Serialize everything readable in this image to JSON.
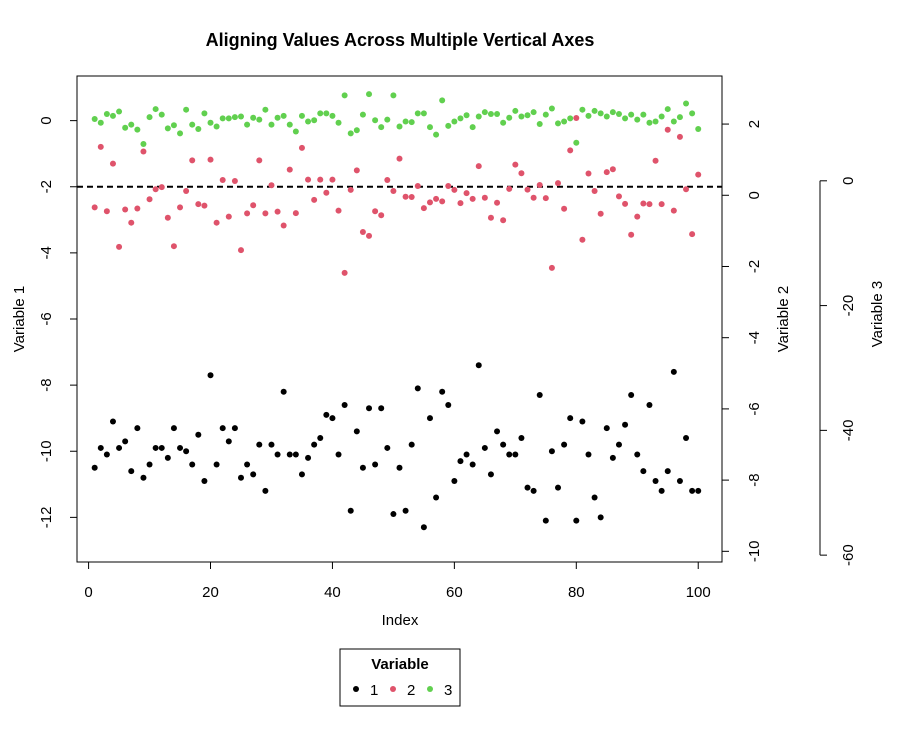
{
  "chart_data": {
    "type": "scatter",
    "title": "Aligning Values Across Multiple Vertical Axes",
    "xlabel": "Index",
    "xlim": [
      -1.9,
      103.9
    ],
    "x_ticks": [
      0,
      20,
      40,
      60,
      80,
      100
    ],
    "axes": [
      {
        "id": "y1",
        "label": "Variable 1",
        "side": "left",
        "range": [
          -13.35,
          1.35
        ],
        "ticks": [
          0,
          -2,
          -4,
          -6,
          -8,
          -10,
          -12
        ]
      },
      {
        "id": "y2",
        "label": "Variable 2",
        "side": "right",
        "range": [
          -10.3,
          3.35
        ],
        "ticks": [
          2,
          0,
          -2,
          -4,
          -6,
          -8,
          -10
        ]
      },
      {
        "id": "y3",
        "label": "Variable 3",
        "side": "right-outer",
        "range": [
          -61.1,
          16.8
        ],
        "ticks": [
          0,
          -20,
          -40,
          -60
        ]
      }
    ],
    "reference_line": {
      "axis": "y1",
      "value": -2,
      "style": "dashed"
    },
    "legend": {
      "title": "Variable",
      "position": "bottom"
    },
    "series": [
      {
        "name": "1",
        "axis": "y1",
        "color": "#000000",
        "x": [
          1,
          2,
          3,
          4,
          5,
          6,
          7,
          8,
          9,
          10,
          11,
          12,
          13,
          14,
          15,
          16,
          17,
          18,
          19,
          20,
          21,
          22,
          23,
          24,
          25,
          26,
          27,
          28,
          29,
          30,
          31,
          32,
          33,
          34,
          35,
          36,
          37,
          38,
          39,
          40,
          41,
          42,
          43,
          44,
          45,
          46,
          47,
          48,
          49,
          50,
          51,
          52,
          53,
          54,
          55,
          56,
          57,
          58,
          59,
          60,
          61,
          62,
          63,
          64,
          65,
          66,
          67,
          68,
          69,
          70,
          71,
          72,
          73,
          74,
          75,
          76,
          77,
          78,
          79,
          80,
          81,
          82,
          83,
          84,
          85,
          86,
          87,
          88,
          89,
          90,
          91,
          92,
          93,
          94,
          95,
          96,
          97,
          98,
          99,
          100
        ],
        "y": [
          -10.5,
          -9.9,
          -10.1,
          -9.1,
          -9.9,
          -9.7,
          -10.6,
          -9.3,
          -10.8,
          -10.4,
          -9.9,
          -9.9,
          -10.2,
          -9.3,
          -9.9,
          -10.0,
          -10.4,
          -9.5,
          -10.9,
          -7.7,
          -10.4,
          -9.3,
          -9.7,
          -9.3,
          -10.8,
          -10.4,
          -10.7,
          -9.8,
          -11.2,
          -9.8,
          -10.1,
          -8.2,
          -10.1,
          -10.1,
          -10.7,
          -10.2,
          -9.8,
          -9.6,
          -8.9,
          -9.0,
          -10.1,
          -8.6,
          -11.8,
          -9.4,
          -10.5,
          -8.7,
          -10.4,
          -8.7,
          -9.9,
          -11.9,
          -10.5,
          -11.8,
          -9.8,
          -8.1,
          -12.3,
          -9.0,
          -11.4,
          -8.2,
          -8.6,
          -10.9,
          -10.3,
          -10.1,
          -10.4,
          -7.4,
          -9.9,
          -10.7,
          -9.4,
          -9.8,
          -10.1,
          -10.1,
          -9.6,
          -11.1,
          -11.2,
          -8.3,
          -12.1,
          -10.0,
          -11.1,
          -9.8,
          -9.0,
          -12.1,
          -9.1,
          -10.1,
          -11.4,
          -12.0,
          -9.3,
          -10.2,
          -9.8,
          -9.2,
          -8.3,
          -10.1,
          -10.6,
          -8.6,
          -10.9,
          -11.2,
          -10.6,
          -7.6,
          -10.9,
          -9.6,
          -11.2,
          -11.2
        ]
      },
      {
        "name": "2",
        "axis": "y2",
        "color": "#DF536B",
        "x": [
          1,
          2,
          3,
          4,
          5,
          6,
          7,
          8,
          9,
          10,
          11,
          12,
          13,
          14,
          15,
          16,
          17,
          18,
          19,
          20,
          21,
          22,
          23,
          24,
          25,
          26,
          27,
          28,
          29,
          30,
          31,
          32,
          33,
          34,
          35,
          36,
          37,
          38,
          39,
          40,
          41,
          42,
          43,
          44,
          45,
          46,
          47,
          48,
          49,
          50,
          51,
          52,
          53,
          54,
          55,
          56,
          57,
          58,
          59,
          60,
          61,
          62,
          63,
          64,
          65,
          66,
          67,
          68,
          69,
          70,
          71,
          72,
          73,
          74,
          75,
          76,
          77,
          78,
          79,
          80,
          81,
          82,
          83,
          84,
          85,
          86,
          87,
          88,
          89,
          90,
          91,
          92,
          93,
          94,
          95,
          96,
          97,
          98,
          99,
          100
        ],
        "y": [
          -0.34,
          1.36,
          -0.45,
          0.89,
          -1.45,
          -0.4,
          -0.77,
          -0.37,
          1.23,
          -0.11,
          0.17,
          0.23,
          -0.63,
          -1.43,
          -0.34,
          0.12,
          0.98,
          -0.25,
          -0.29,
          1.0,
          -0.77,
          0.43,
          -0.6,
          0.4,
          -1.54,
          -0.51,
          -0.28,
          0.98,
          -0.51,
          0.28,
          -0.46,
          -0.85,
          0.72,
          -0.5,
          1.33,
          0.44,
          -0.13,
          0.44,
          0.07,
          0.44,
          -0.43,
          -2.18,
          0.15,
          0.7,
          -1.03,
          -1.14,
          -0.45,
          -0.56,
          0.43,
          0.12,
          1.03,
          -0.04,
          -0.05,
          0.26,
          -0.36,
          -0.2,
          -0.1,
          -0.17,
          0.26,
          0.15,
          -0.22,
          0.06,
          -0.1,
          0.82,
          -0.07,
          -0.63,
          -0.21,
          -0.7,
          0.18,
          0.86,
          0.62,
          0.16,
          -0.07,
          0.29,
          -0.08,
          -2.04,
          0.34,
          -0.38,
          1.26,
          2.17,
          -1.25,
          0.61,
          0.12,
          -0.52,
          0.65,
          0.73,
          -0.03,
          -0.24,
          -1.11,
          -0.6,
          -0.23,
          -0.25,
          0.97,
          -0.25,
          1.84,
          -0.43,
          1.64,
          0.17,
          -1.09,
          0.58
        ]
      },
      {
        "name": "3",
        "axis": "y3",
        "color": "#61D04F",
        "x": [
          1,
          2,
          3,
          4,
          5,
          6,
          7,
          8,
          9,
          10,
          11,
          12,
          13,
          14,
          15,
          16,
          17,
          18,
          19,
          20,
          21,
          22,
          23,
          24,
          25,
          26,
          27,
          28,
          29,
          30,
          31,
          32,
          33,
          34,
          35,
          36,
          37,
          38,
          39,
          40,
          41,
          42,
          43,
          44,
          45,
          46,
          47,
          48,
          49,
          50,
          51,
          52,
          53,
          54,
          55,
          56,
          57,
          58,
          59,
          60,
          61,
          62,
          63,
          64,
          65,
          66,
          67,
          68,
          69,
          70,
          71,
          72,
          73,
          74,
          75,
          76,
          77,
          78,
          79,
          80,
          81,
          82,
          83,
          84,
          85,
          86,
          87,
          88,
          89,
          90,
          91,
          92,
          93,
          94,
          95,
          96,
          97,
          98,
          99,
          100
        ],
        "y": [
          9.9,
          9.3,
          10.7,
          10.4,
          11.1,
          8.5,
          9.0,
          8.2,
          5.9,
          10.2,
          11.5,
          10.6,
          8.4,
          8.9,
          7.6,
          11.4,
          9.0,
          8.3,
          10.8,
          9.3,
          8.7,
          10.0,
          10.0,
          10.2,
          10.3,
          9.0,
          10.1,
          9.8,
          11.4,
          9.0,
          10.1,
          10.4,
          9.0,
          7.9,
          10.4,
          9.5,
          9.7,
          10.8,
          10.8,
          10.4,
          9.3,
          13.7,
          7.6,
          8.1,
          10.6,
          13.9,
          9.7,
          8.6,
          9.8,
          13.7,
          8.7,
          9.5,
          9.4,
          10.8,
          10.8,
          8.6,
          7.4,
          12.9,
          8.8,
          9.5,
          10.0,
          10.5,
          8.6,
          10.3,
          11.0,
          10.7,
          10.7,
          9.3,
          10.1,
          11.2,
          10.3,
          10.5,
          11.0,
          9.1,
          10.6,
          11.6,
          9.2,
          9.5,
          10.0,
          6.1,
          11.4,
          10.4,
          11.2,
          10.8,
          10.3,
          11.0,
          10.7,
          10.0,
          10.6,
          9.8,
          10.6,
          9.3,
          9.5,
          10.3,
          11.5,
          9.5,
          10.2,
          12.4,
          10.8,
          8.3
        ]
      }
    ]
  }
}
